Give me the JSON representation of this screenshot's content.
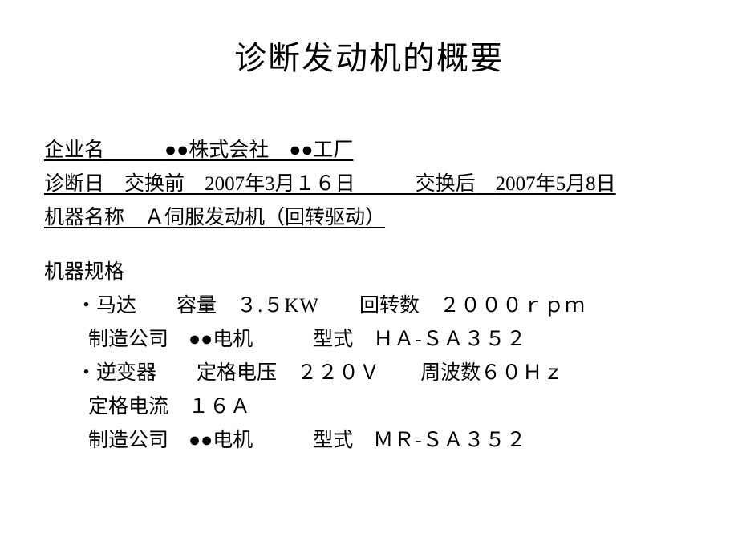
{
  "title": "诊断发动机的概要",
  "company": {
    "label": "企业名",
    "value": "●●株式会社　●●工厂"
  },
  "diagnosis": {
    "label": "诊断日",
    "before_label": "交换前",
    "before_date": "2007年3月１６日",
    "after_label": "交换后",
    "after_date": "2007年5月8日"
  },
  "machine": {
    "label": "机器名称",
    "value": "Ａ伺服发动机（回转驱动）"
  },
  "spec": {
    "header": "机器规格",
    "motor": {
      "name": "・马达",
      "capacity_label": "容量",
      "capacity_value": "３.５KW",
      "rpm_label": "回转数",
      "rpm_value": "２０００ｒｐｍ",
      "maker_label": "制造公司",
      "maker_value": "●●电机",
      "model_label": "型式",
      "model_value": "ＨＡ‐ＳＡ３５２"
    },
    "inverter": {
      "name": "・逆变器",
      "voltage_label": "定格电压",
      "voltage_value": "２２０Ｖ",
      "freq_label": "周波数",
      "freq_value": "６０Ｈｚ",
      "current_label": "定格电流",
      "current_value": "１６Ａ",
      "maker_label": "制造公司",
      "maker_value": "●●电机",
      "model_label": "型式",
      "model_value": "ＭＲ-ＳＡ３５２"
    }
  },
  "styling": {
    "background_color": "#ffffff",
    "text_color": "#000000",
    "title_fontsize": 40,
    "body_fontsize": 25,
    "font_family": "SimSun"
  }
}
